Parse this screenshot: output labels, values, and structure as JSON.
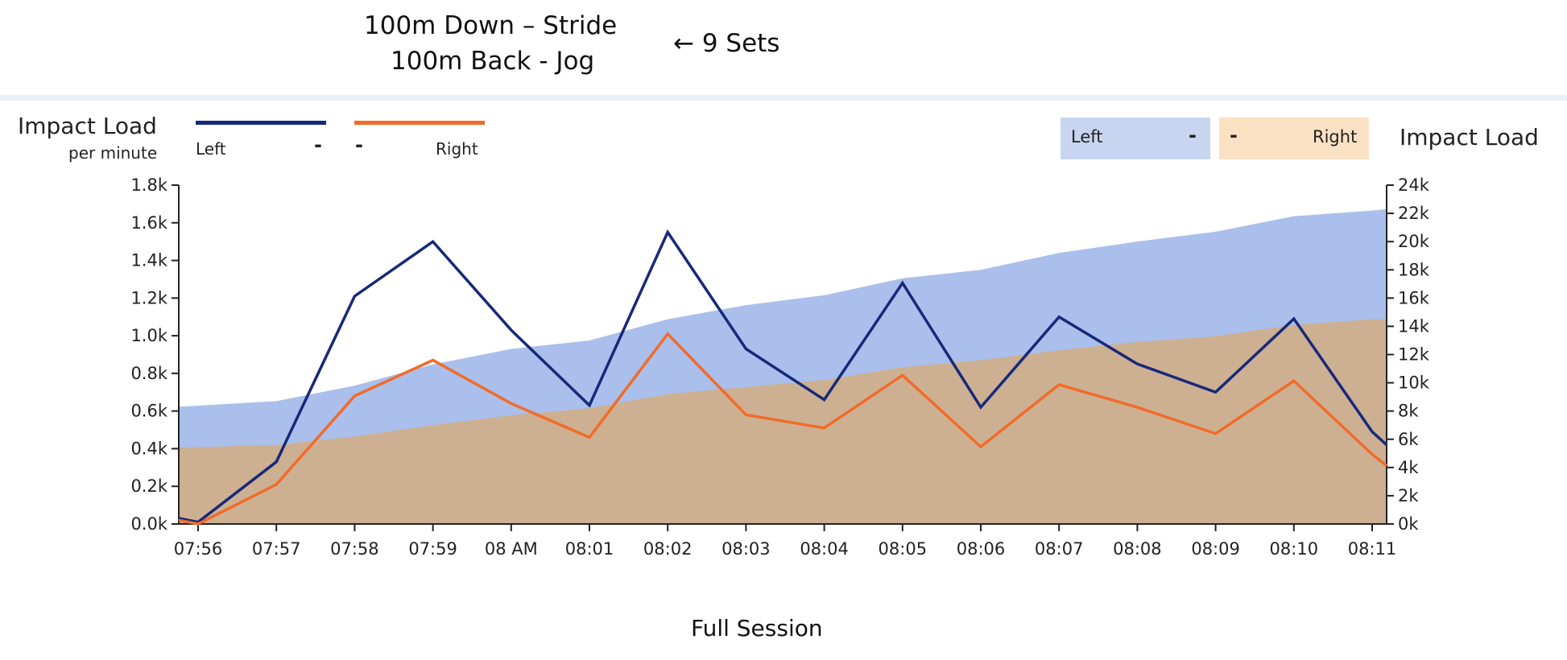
{
  "annotation": {
    "line1": "100m Down – Stride",
    "line2": "100m Back - Jog",
    "line3": "← 9 Sets"
  },
  "legend": {
    "left_title": "Impact Load",
    "left_subtitle": "per minute",
    "left_label": "Left",
    "right_label": "Right",
    "dash": "-",
    "box_left_label": "Left",
    "box_right_label": "Right",
    "right_title": "Impact Load"
  },
  "footer": {
    "caption": "Full Session"
  },
  "colors": {
    "left_line": "#17297a",
    "right_line": "#f26b2a",
    "left_area": "#aabfeb",
    "right_area": "#cdb092"
  },
  "chart_data": {
    "type": "line",
    "categories": [
      "07:56",
      "07:57",
      "07:58",
      "07:59",
      "08 AM",
      "08:01",
      "08:02",
      "08:03",
      "08:04",
      "08:05",
      "08:06",
      "08:07",
      "08:08",
      "08:09",
      "08:10",
      "08:11"
    ],
    "y_left": {
      "ticks": [
        "0.0k",
        "0.2k",
        "0.4k",
        "0.6k",
        "0.8k",
        "1.0k",
        "1.2k",
        "1.4k",
        "1.6k",
        "1.8k"
      ],
      "range": [
        0,
        1800
      ]
    },
    "y_right": {
      "ticks": [
        "0k",
        "2k",
        "4k",
        "6k",
        "8k",
        "10k",
        "12k",
        "14k",
        "16k",
        "18k",
        "20k",
        "22k",
        "24k"
      ],
      "range": [
        0,
        24000
      ]
    },
    "series": [
      {
        "name": "Left",
        "axis": "left",
        "kind": "line",
        "x": [
          -0.25,
          0,
          1,
          2,
          3,
          4,
          5,
          6,
          7,
          8,
          9,
          10,
          11,
          12,
          13,
          14,
          15,
          15.25
        ],
        "values": [
          30,
          10,
          330,
          1210,
          1500,
          1030,
          630,
          1550,
          930,
          660,
          1280,
          620,
          1100,
          850,
          700,
          1090,
          490,
          420
        ]
      },
      {
        "name": "Right",
        "axis": "left",
        "kind": "line",
        "x": [
          -0.25,
          0,
          1,
          2,
          3,
          4,
          5,
          6,
          7,
          8,
          9,
          10,
          11,
          12,
          13,
          14,
          15,
          15.25
        ],
        "values": [
          20,
          0,
          210,
          680,
          870,
          640,
          460,
          1010,
          580,
          510,
          790,
          410,
          740,
          620,
          480,
          760,
          370,
          310
        ]
      },
      {
        "name": "Left",
        "axis": "right",
        "kind": "area",
        "x": [
          -0.25,
          1,
          2,
          3,
          4,
          5,
          6,
          7,
          8,
          9,
          10,
          11,
          12,
          13,
          14,
          15,
          15.25
        ],
        "values": [
          8300,
          8700,
          9800,
          11300,
          12400,
          13000,
          14500,
          15500,
          16200,
          17400,
          18000,
          19200,
          20000,
          20700,
          21800,
          22200,
          22300
        ]
      },
      {
        "name": "Right",
        "axis": "right",
        "kind": "area",
        "x": [
          -0.25,
          1,
          2,
          3,
          4,
          5,
          6,
          7,
          8,
          9,
          10,
          11,
          12,
          13,
          14,
          15,
          15.25
        ],
        "values": [
          5400,
          5600,
          6200,
          7000,
          7700,
          8200,
          9200,
          9700,
          10200,
          11100,
          11600,
          12300,
          12900,
          13300,
          14100,
          14500,
          14500
        ]
      }
    ]
  }
}
